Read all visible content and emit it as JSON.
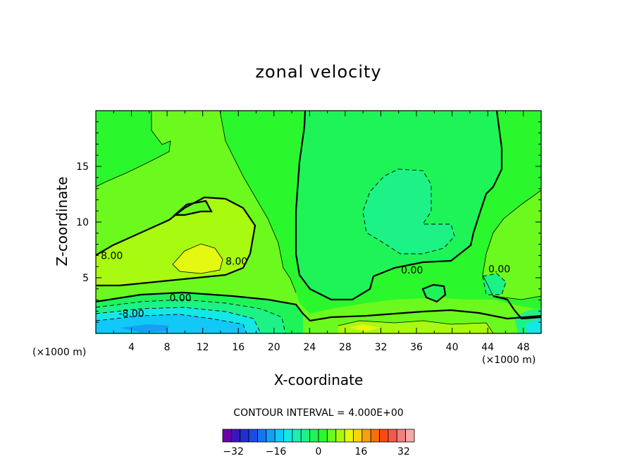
{
  "chart_data": {
    "type": "contour",
    "title": "zonal velocity",
    "xlabel": "X-coordinate",
    "ylabel": "Z-coordinate",
    "x_unit_label": "(×1000 m)",
    "x_unit_label_right": "(×1000 m)",
    "xlim": [
      0,
      50
    ],
    "ylim": [
      0,
      20
    ],
    "x_ticks": [
      4,
      8,
      12,
      16,
      20,
      24,
      28,
      32,
      36,
      40,
      44,
      48
    ],
    "y_ticks": [
      5,
      10,
      15
    ],
    "contour_interval_text": "CONTOUR INTERVAL = 4.000E+00",
    "contour_labels": [
      {
        "text": "8.00",
        "x": 1.8,
        "z": 7.0
      },
      {
        "text": "8.00",
        "x": 15.8,
        "z": 6.5
      },
      {
        "text": "0.00",
        "x": 9.5,
        "z": 3.2
      },
      {
        "text": "-8.00",
        "x": 4.0,
        "z": 1.8
      },
      {
        "text": "0.00",
        "x": 35.5,
        "z": 5.7
      },
      {
        "text": "0.00",
        "x": 45.3,
        "z": 5.8
      }
    ],
    "colorbar": {
      "tick_labels": [
        "-32",
        "-16",
        "0",
        "16",
        "32"
      ],
      "levels_min": -36,
      "levels_max": 36,
      "colors": [
        "#6a00a8",
        "#3a16b8",
        "#1f2fd0",
        "#1c4be6",
        "#1674f0",
        "#14a0f4",
        "#12c8f6",
        "#14e8e6",
        "#18f0b4",
        "#1cf286",
        "#1ef458",
        "#2af82c",
        "#6cfa1e",
        "#a8fa10",
        "#e4f810",
        "#f8d60c",
        "#f8a008",
        "#f86e08",
        "#f84a14",
        "#f05a4a",
        "#f08080",
        "#f8a8a8"
      ]
    },
    "regions": [
      {
        "level": "4 to 8",
        "color": "#6cfa1e"
      },
      {
        "level": "8 to 12",
        "color": "#a8fa10"
      },
      {
        "level": "12 to 16",
        "color": "#e4f810"
      },
      {
        "level": "0 to 4",
        "color": "#2af82c"
      },
      {
        "level": "-4 to 0",
        "color": "#1ef458"
      },
      {
        "level": "-8 to -4",
        "color": "#1cf286"
      },
      {
        "level": "-20 to -12",
        "color": "#12c8f6"
      }
    ]
  }
}
